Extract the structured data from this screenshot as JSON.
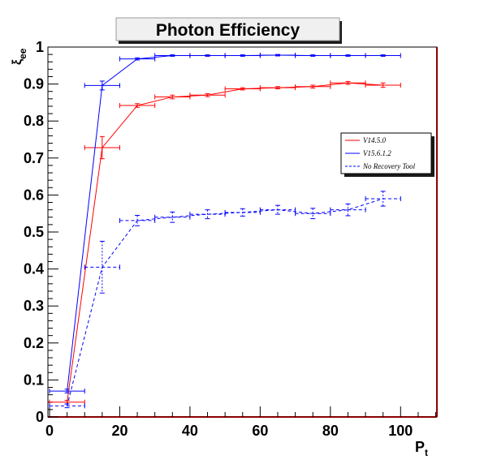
{
  "chart_data": {
    "type": "line",
    "title": "Photon Efficiency",
    "xlabel": "P",
    "xlabel_sub": "t",
    "ylabel": "ξ",
    "ylabel_sub": "ee",
    "xlim": [
      0,
      110
    ],
    "ylim": [
      0,
      1
    ],
    "x_ticks": [
      "0",
      "20",
      "40",
      "60",
      "80",
      "100"
    ],
    "y_ticks": [
      "0",
      "0.1",
      "0.2",
      "0.3",
      "0.4",
      "0.5",
      "0.6",
      "0.7",
      "0.8",
      "0.9",
      "1"
    ],
    "grid": false,
    "legend_position": "right",
    "series": [
      {
        "name": "V14.5.0",
        "color": "#ff0000",
        "line_style": "solid",
        "points": [
          {
            "x": 5,
            "y": 0.04,
            "xerr": 5,
            "yerr": 0.005
          },
          {
            "x": 15,
            "y": 0.728,
            "xerr": 5,
            "yerr": 0.03
          },
          {
            "x": 25,
            "y": 0.842,
            "xerr": 5,
            "yerr": 0.005
          },
          {
            "x": 35,
            "y": 0.865,
            "xerr": 5,
            "yerr": 0.005
          },
          {
            "x": 45,
            "y": 0.87,
            "xerr": 5,
            "yerr": 0.004
          },
          {
            "x": 55,
            "y": 0.887,
            "xerr": 5,
            "yerr": 0.003
          },
          {
            "x": 65,
            "y": 0.89,
            "xerr": 5,
            "yerr": 0.003
          },
          {
            "x": 75,
            "y": 0.893,
            "xerr": 5,
            "yerr": 0.004
          },
          {
            "x": 85,
            "y": 0.903,
            "xerr": 5,
            "yerr": 0.004
          },
          {
            "x": 95,
            "y": 0.897,
            "xerr": 5,
            "yerr": 0.006
          }
        ]
      },
      {
        "name": "V15.6.1.2",
        "color": "#0000ff",
        "line_style": "solid",
        "points": [
          {
            "x": 5,
            "y": 0.07,
            "xerr": 5,
            "yerr": 0.005
          },
          {
            "x": 15,
            "y": 0.896,
            "xerr": 5,
            "yerr": 0.012
          },
          {
            "x": 25,
            "y": 0.968,
            "xerr": 5,
            "yerr": 0.003
          },
          {
            "x": 35,
            "y": 0.977,
            "xerr": 5,
            "yerr": 0.002
          },
          {
            "x": 45,
            "y": 0.977,
            "xerr": 5,
            "yerr": 0.002
          },
          {
            "x": 55,
            "y": 0.977,
            "xerr": 5,
            "yerr": 0.002
          },
          {
            "x": 65,
            "y": 0.978,
            "xerr": 5,
            "yerr": 0.002
          },
          {
            "x": 75,
            "y": 0.977,
            "xerr": 5,
            "yerr": 0.002
          },
          {
            "x": 85,
            "y": 0.977,
            "xerr": 5,
            "yerr": 0.002
          },
          {
            "x": 95,
            "y": 0.977,
            "xerr": 5,
            "yerr": 0.002
          }
        ]
      },
      {
        "name": "No Recovery Tool",
        "color": "#0000ff",
        "line_style": "dashed",
        "points": [
          {
            "x": 5,
            "y": 0.03,
            "xerr": 5,
            "yerr": 0.005
          },
          {
            "x": 15,
            "y": 0.405,
            "xerr": 5,
            "yerr": 0.07
          },
          {
            "x": 25,
            "y": 0.531,
            "xerr": 5,
            "yerr": 0.014
          },
          {
            "x": 35,
            "y": 0.54,
            "xerr": 5,
            "yerr": 0.014
          },
          {
            "x": 45,
            "y": 0.548,
            "xerr": 5,
            "yerr": 0.012
          },
          {
            "x": 55,
            "y": 0.553,
            "xerr": 5,
            "yerr": 0.01
          },
          {
            "x": 65,
            "y": 0.56,
            "xerr": 5,
            "yerr": 0.012
          },
          {
            "x": 75,
            "y": 0.55,
            "xerr": 5,
            "yerr": 0.014
          },
          {
            "x": 85,
            "y": 0.56,
            "xerr": 5,
            "yerr": 0.016
          },
          {
            "x": 95,
            "y": 0.59,
            "xerr": 5,
            "yerr": 0.02
          }
        ]
      }
    ]
  }
}
